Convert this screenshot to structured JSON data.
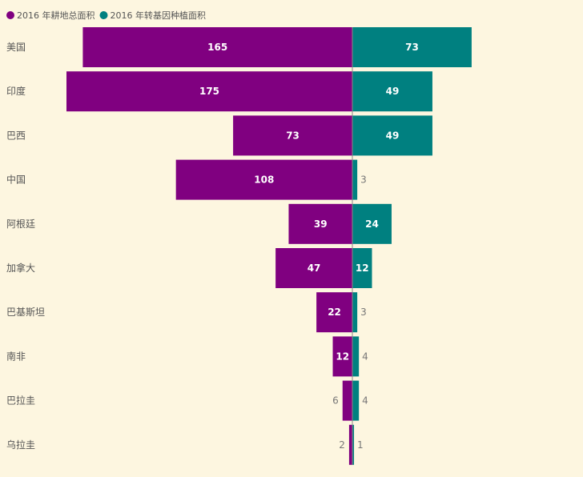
{
  "chart_data": {
    "type": "bar",
    "orientation": "horizontal-diverging",
    "categories": [
      "美国",
      "印度",
      "巴西",
      "中国",
      "阿根廷",
      "加拿大",
      "巴基斯坦",
      "南非",
      "巴拉圭",
      "乌拉圭"
    ],
    "series": [
      {
        "name": "2016 年耕地总面积",
        "side": "left",
        "color": "#800080",
        "values": [
          165,
          175,
          73,
          108,
          39,
          47,
          22,
          12,
          6,
          2
        ]
      },
      {
        "name": "2016 年转基因种植面积",
        "side": "right",
        "color": "#008080",
        "values": [
          73,
          49,
          49,
          3,
          24,
          12,
          3,
          4,
          4,
          1
        ]
      }
    ],
    "legend": "top-left",
    "grid": false,
    "xlim": [
      -175,
      73
    ]
  },
  "colors": {
    "background": "#fdf6e0",
    "axis": "#888888"
  }
}
